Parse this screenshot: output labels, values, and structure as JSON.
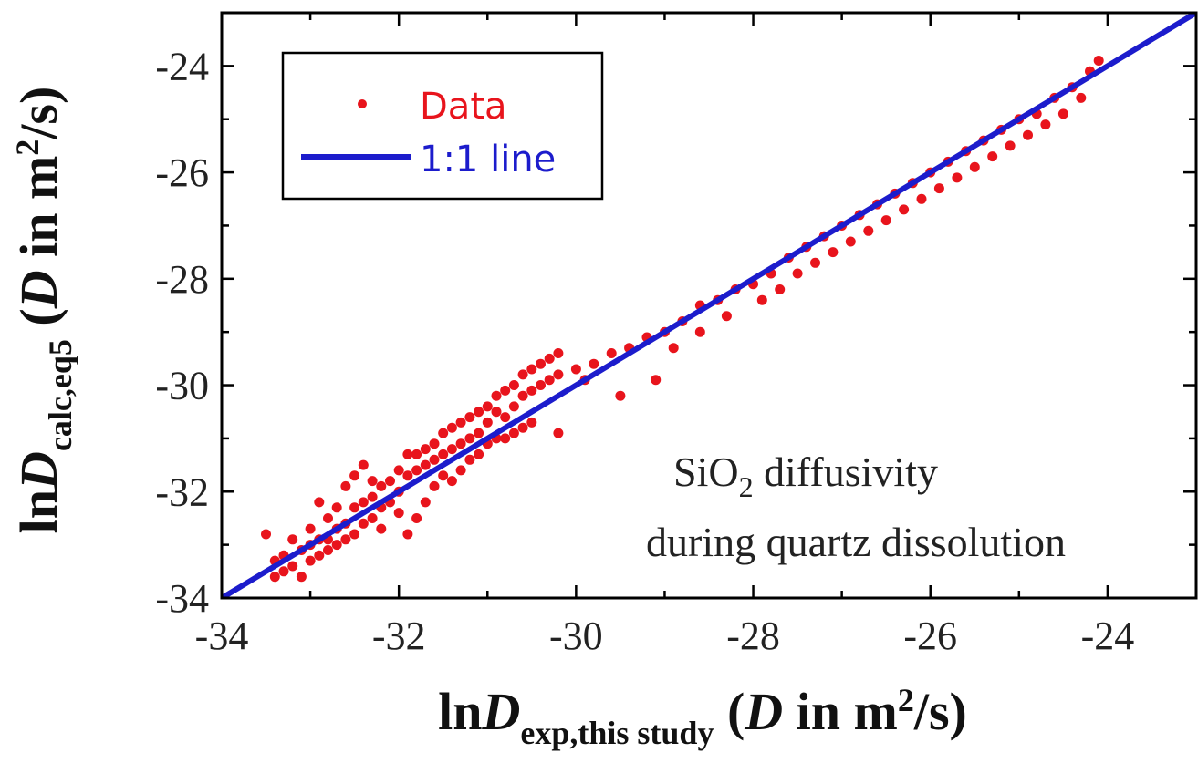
{
  "chart_data": {
    "type": "scatter",
    "annotation": {
      "line1_main": "SiO",
      "line1_sub": "2",
      "line1_rest": " diffusivity",
      "line2": "during quartz dissolution"
    },
    "xlabel": {
      "main": "ln",
      "var": "D",
      "sub": "exp,this study",
      "unit_open": " (",
      "unit_var": "D",
      "unit_text": " in m",
      "unit_sup": "2",
      "unit_close": "/s)"
    },
    "ylabel": {
      "main": "ln",
      "var": "D",
      "sub": "calc,eq5",
      "unit_open": " (",
      "unit_var": "D",
      "unit_text": " in m",
      "unit_sup": "2",
      "unit_close": "/s)"
    },
    "xlim": [
      -34,
      -23
    ],
    "ylim": [
      -34,
      -23
    ],
    "xticks": [
      -34,
      -32,
      -30,
      -28,
      -26,
      -24
    ],
    "yticks": [
      -34,
      -32,
      -30,
      -28,
      -26,
      -24
    ],
    "xtick_labels": [
      "-34",
      "-32",
      "-30",
      "-28",
      "-26",
      "-24"
    ],
    "ytick_labels": [
      "-34",
      "-32",
      "-30",
      "-28",
      "-26",
      "-24"
    ],
    "grid": false,
    "legend": {
      "position": "top-left",
      "entries": [
        {
          "label": "Data",
          "marker": "dot",
          "color": "#e8141c"
        },
        {
          "label": "1:1 line",
          "marker": "line",
          "color": "#1c1ccc"
        }
      ]
    },
    "series": [
      {
        "name": "Data",
        "color": "#e8141c",
        "points": [
          [
            -33.5,
            -32.8
          ],
          [
            -33.4,
            -33.3
          ],
          [
            -33.4,
            -33.6
          ],
          [
            -33.3,
            -33.5
          ],
          [
            -33.3,
            -33.2
          ],
          [
            -33.2,
            -32.9
          ],
          [
            -33.2,
            -33.4
          ],
          [
            -33.1,
            -33.1
          ],
          [
            -33.1,
            -33.6
          ],
          [
            -33.0,
            -32.7
          ],
          [
            -33.0,
            -33.0
          ],
          [
            -33.0,
            -33.3
          ],
          [
            -32.9,
            -32.2
          ],
          [
            -32.9,
            -32.9
          ],
          [
            -32.9,
            -33.2
          ],
          [
            -32.8,
            -32.5
          ],
          [
            -32.8,
            -32.9
          ],
          [
            -32.8,
            -33.1
          ],
          [
            -32.7,
            -32.3
          ],
          [
            -32.7,
            -32.7
          ],
          [
            -32.7,
            -33.0
          ],
          [
            -32.6,
            -31.9
          ],
          [
            -32.6,
            -32.6
          ],
          [
            -32.6,
            -32.9
          ],
          [
            -32.5,
            -31.7
          ],
          [
            -32.5,
            -32.3
          ],
          [
            -32.5,
            -32.8
          ],
          [
            -32.4,
            -31.5
          ],
          [
            -32.4,
            -32.2
          ],
          [
            -32.4,
            -32.6
          ],
          [
            -32.3,
            -31.8
          ],
          [
            -32.3,
            -32.1
          ],
          [
            -32.3,
            -32.5
          ],
          [
            -32.2,
            -31.9
          ],
          [
            -32.2,
            -32.3
          ],
          [
            -32.2,
            -32.7
          ],
          [
            -32.1,
            -31.8
          ],
          [
            -32.1,
            -32.2
          ],
          [
            -32.0,
            -31.6
          ],
          [
            -32.0,
            -32.0
          ],
          [
            -32.0,
            -32.4
          ],
          [
            -31.9,
            -31.3
          ],
          [
            -31.9,
            -31.7
          ],
          [
            -31.9,
            -32.8
          ],
          [
            -31.8,
            -31.3
          ],
          [
            -31.8,
            -31.6
          ],
          [
            -31.8,
            -32.5
          ],
          [
            -31.7,
            -31.2
          ],
          [
            -31.7,
            -31.5
          ],
          [
            -31.7,
            -32.2
          ],
          [
            -31.6,
            -31.1
          ],
          [
            -31.6,
            -31.4
          ],
          [
            -31.6,
            -31.9
          ],
          [
            -31.5,
            -30.9
          ],
          [
            -31.5,
            -31.3
          ],
          [
            -31.5,
            -31.7
          ],
          [
            -31.4,
            -30.8
          ],
          [
            -31.4,
            -31.2
          ],
          [
            -31.4,
            -31.8
          ],
          [
            -31.3,
            -30.7
          ],
          [
            -31.3,
            -31.1
          ],
          [
            -31.3,
            -31.6
          ],
          [
            -31.2,
            -30.6
          ],
          [
            -31.2,
            -31.0
          ],
          [
            -31.2,
            -31.4
          ],
          [
            -31.1,
            -30.5
          ],
          [
            -31.1,
            -30.9
          ],
          [
            -31.1,
            -31.3
          ],
          [
            -31.0,
            -30.4
          ],
          [
            -31.0,
            -30.7
          ],
          [
            -31.0,
            -31.1
          ],
          [
            -30.9,
            -30.2
          ],
          [
            -30.9,
            -30.5
          ],
          [
            -30.9,
            -31.0
          ],
          [
            -30.8,
            -30.1
          ],
          [
            -30.8,
            -30.6
          ],
          [
            -30.8,
            -31.0
          ],
          [
            -30.7,
            -30.0
          ],
          [
            -30.7,
            -30.4
          ],
          [
            -30.7,
            -30.9
          ],
          [
            -30.6,
            -29.8
          ],
          [
            -30.6,
            -30.2
          ],
          [
            -30.6,
            -30.8
          ],
          [
            -30.5,
            -29.7
          ],
          [
            -30.5,
            -30.1
          ],
          [
            -30.5,
            -30.7
          ],
          [
            -30.4,
            -29.6
          ],
          [
            -30.4,
            -30.0
          ],
          [
            -30.3,
            -29.5
          ],
          [
            -30.3,
            -29.9
          ],
          [
            -30.2,
            -29.4
          ],
          [
            -30.2,
            -29.8
          ],
          [
            -30.2,
            -30.9
          ],
          [
            -30.0,
            -29.7
          ],
          [
            -29.9,
            -29.9
          ],
          [
            -29.8,
            -29.6
          ],
          [
            -29.6,
            -29.4
          ],
          [
            -29.5,
            -30.2
          ],
          [
            -29.4,
            -29.3
          ],
          [
            -29.2,
            -29.1
          ],
          [
            -29.1,
            -29.9
          ],
          [
            -29.0,
            -29.0
          ],
          [
            -28.9,
            -29.3
          ],
          [
            -28.8,
            -28.8
          ],
          [
            -28.6,
            -29.0
          ],
          [
            -28.6,
            -28.5
          ],
          [
            -28.4,
            -28.4
          ],
          [
            -28.3,
            -28.7
          ],
          [
            -28.2,
            -28.2
          ],
          [
            -28.0,
            -28.1
          ],
          [
            -27.9,
            -28.4
          ],
          [
            -27.8,
            -27.9
          ],
          [
            -27.7,
            -28.2
          ],
          [
            -27.6,
            -27.6
          ],
          [
            -27.5,
            -27.9
          ],
          [
            -27.4,
            -27.4
          ],
          [
            -27.3,
            -27.7
          ],
          [
            -27.2,
            -27.2
          ],
          [
            -27.1,
            -27.5
          ],
          [
            -27.0,
            -27.0
          ],
          [
            -26.9,
            -27.3
          ],
          [
            -26.8,
            -26.8
          ],
          [
            -26.7,
            -27.1
          ],
          [
            -26.6,
            -26.6
          ],
          [
            -26.5,
            -26.9
          ],
          [
            -26.4,
            -26.4
          ],
          [
            -26.3,
            -26.7
          ],
          [
            -26.2,
            -26.2
          ],
          [
            -26.1,
            -26.5
          ],
          [
            -26.0,
            -26.0
          ],
          [
            -25.9,
            -26.3
          ],
          [
            -25.8,
            -25.8
          ],
          [
            -25.7,
            -26.1
          ],
          [
            -25.6,
            -25.6
          ],
          [
            -25.5,
            -25.9
          ],
          [
            -25.4,
            -25.4
          ],
          [
            -25.3,
            -25.7
          ],
          [
            -25.2,
            -25.2
          ],
          [
            -25.1,
            -25.5
          ],
          [
            -25.0,
            -25.0
          ],
          [
            -24.9,
            -25.3
          ],
          [
            -24.8,
            -24.9
          ],
          [
            -24.7,
            -25.1
          ],
          [
            -24.6,
            -24.6
          ],
          [
            -24.5,
            -24.9
          ],
          [
            -24.4,
            -24.4
          ],
          [
            -24.3,
            -24.6
          ],
          [
            -24.2,
            -24.1
          ],
          [
            -24.1,
            -23.9
          ]
        ]
      },
      {
        "name": "1:1 line",
        "color": "#1c1ccc",
        "points": [
          [
            -34,
            -34
          ],
          [
            -23,
            -23
          ]
        ]
      }
    ]
  }
}
